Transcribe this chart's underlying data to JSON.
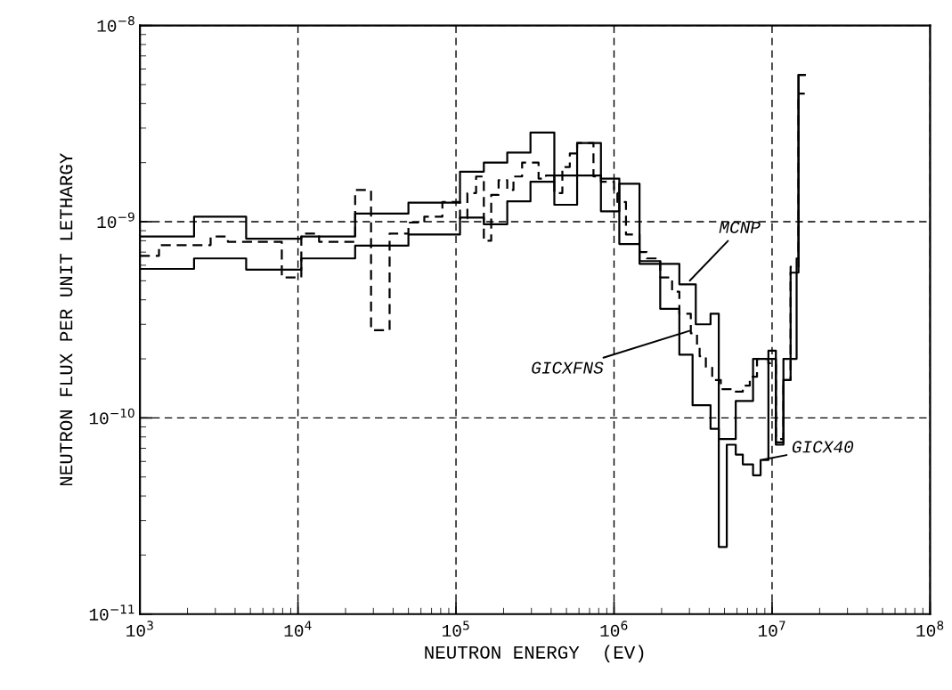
{
  "chart_data": {
    "type": "step",
    "xlabel": "NEUTRON ENERGY  (EV)",
    "ylabel": "NEUTRON FLUX PER UNIT LETHARGY",
    "log": "xy",
    "grid": true,
    "xlim": [
      1000,
      100000000
    ],
    "ylim": [
      1e-11,
      1e-08
    ],
    "xticks": [
      {
        "value": 1000,
        "label": "10$^{3}$"
      },
      {
        "value": 10000,
        "label": "10$^{4}$"
      },
      {
        "value": 100000,
        "label": "10$^{5}$"
      },
      {
        "value": 1000000,
        "label": "10$^{6}$"
      },
      {
        "value": 10000000,
        "label": "10$^{7}$"
      },
      {
        "value": 100000000,
        "label": "10$^{8}$"
      }
    ],
    "yticks": [
      {
        "value": 1e-11,
        "label": "10$^{−11}$"
      },
      {
        "value": 1e-10,
        "label": "10$^{−10}$"
      },
      {
        "value": 1e-09,
        "label": "10$^{−9}$"
      },
      {
        "value": 1e-08,
        "label": "10$^{−8}$"
      }
    ],
    "series": [
      {
        "color": "#000000",
        "line_style": "solid",
        "x": [
          1000,
          2200,
          4700,
          10500,
          23000,
          50000,
          106000,
          150000,
          211000,
          296000,
          419000,
          584000,
          826000,
          1080000,
          1450000,
          2590000,
          3290000,
          4080000,
          4600000,
          5890000,
          7580000,
          10570000,
          11800000,
          13100000,
          14700000,
          16100000
        ],
        "values": [
          8.4e-10,
          1.06e-09,
          8.2e-10,
          8.4e-10,
          1.1e-09,
          1.25e-09,
          1.8e-09,
          2e-09,
          2.25e-09,
          2.85e-09,
          1.22e-09,
          2.52e-09,
          1.13e-09,
          1.56e-09,
          6.1e-10,
          4.8e-10,
          3e-10,
          3.4e-10,
          7.8e-11,
          1.22e-10,
          2e-10,
          7.5e-11,
          1.56e-10,
          5.5e-10,
          5.6e-09,
          5.6e-09
        ]
      },
      {
        "color": "#000000",
        "line_style": "dashed",
        "x": [
          1000,
          1320,
          2800,
          3600,
          7900,
          10500,
          13600,
          23000,
          29000,
          38000,
          50000,
          63000,
          82000,
          106000,
          118000,
          134000,
          150000,
          167000,
          186000,
          211000,
          231000,
          262000,
          333000,
          371000,
          419000,
          471000,
          525000,
          584000,
          741000,
          826000,
          1000000,
          1050000,
          1190000,
          1450000,
          1610000,
          1960000,
          2330000,
          2590000,
          3060000,
          3350000,
          3480000,
          3810000,
          4180000,
          4740000,
          5540000,
          6530000,
          7230000,
          8030000,
          9480000,
          10570000,
          11800000,
          13100000,
          14700000,
          16100000
        ],
        "values": [
          6.7e-10,
          7.6e-10,
          8.4e-10,
          7.9e-10,
          5.2e-10,
          8.7e-10,
          7.9e-10,
          1.45e-09,
          2.8e-10,
          8.7e-10,
          9.9e-10,
          1.06e-09,
          1.26e-09,
          1.04e-09,
          1.4e-09,
          1.7e-09,
          8e-10,
          1.37e-09,
          1.63e-09,
          1.45e-09,
          1.7e-09,
          2e-09,
          1.66e-09,
          1.72e-09,
          1.4e-09,
          1.9e-09,
          2.23e-09,
          2.52e-09,
          1.7e-09,
          1.6e-09,
          1.4e-09,
          1.26e-09,
          8.6e-10,
          7e-10,
          6.5e-10,
          5.2e-10,
          4.4e-10,
          3.4e-10,
          2.7e-10,
          2.3e-10,
          2.06e-10,
          1.8e-10,
          1.56e-10,
          1.4e-10,
          1.36e-10,
          1.46e-10,
          1.62e-10,
          2e-10,
          1.9e-10,
          7.8e-11,
          1.56e-10,
          5.9e-10,
          4.5e-09,
          4.5e-09
        ]
      },
      {
        "color": "#000000",
        "line_style": "solid",
        "x": [
          1000,
          2200,
          4700,
          10500,
          23000,
          50000,
          106000,
          150000,
          211000,
          296000,
          419000,
          826000,
          1080000,
          1450000,
          1960000,
          2590000,
          3140000,
          4080000,
          4600000,
          5170000,
          5890000,
          6530000,
          7580000,
          8460000,
          9480000,
          10570000,
          11800000,
          14300000,
          14700000,
          16100000
        ],
        "values": [
          5.75e-10,
          6.5e-10,
          5.7e-10,
          6.5e-10,
          7.55e-10,
          8.6e-10,
          1.05e-09,
          9.7e-10,
          1.27e-09,
          1.6e-09,
          1.72e-09,
          1.66e-09,
          7.7e-10,
          6.3e-10,
          3.6e-10,
          2.1e-10,
          1.16e-10,
          8.8e-11,
          2.2e-11,
          7.3e-11,
          6.5e-11,
          5.8e-11,
          5.1e-11,
          6.1e-11,
          2.2e-10,
          7.3e-11,
          2e-10,
          6.5e-10,
          5.6e-09,
          5.6e-09
        ]
      }
    ],
    "annotations": [
      {
        "text": "MCNP",
        "x": 2940000,
        "y": 4.9e-10
      },
      {
        "text": "GICXFNS",
        "x": 3100000,
        "y": 2.8e-10
      },
      {
        "text": "GICX40",
        "x": 8460000,
        "y": 6.1e-11
      }
    ]
  }
}
